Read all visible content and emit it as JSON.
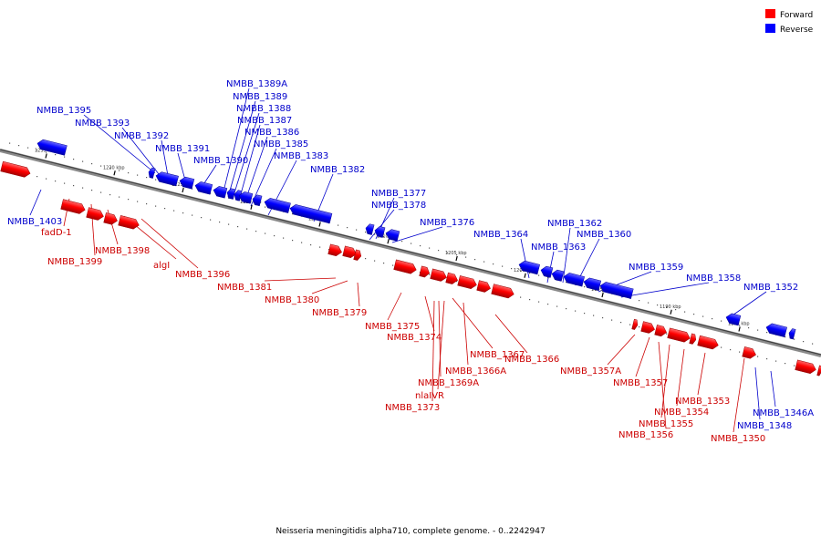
{
  "legend": {
    "forward": {
      "label": "Forward",
      "color": "#ff0000"
    },
    "reverse": {
      "label": "Reverse",
      "color": "#0000ff"
    }
  },
  "caption": "Neisseria meningitidis alpha710, complete genome. - 0..2242947",
  "ticks": [
    {
      "label": "1235 kbp"
    },
    {
      "label": "1230 kbp"
    },
    {
      "label": "1225 kbp"
    },
    {
      "label": "1220 kbp"
    },
    {
      "label": "1215 kbp"
    },
    {
      "label": "1210 kbp"
    },
    {
      "label": "1205 kbp"
    },
    {
      "label": "1200 kbp"
    },
    {
      "label": "1195 kbp"
    },
    {
      "label": "1190 kbp"
    },
    {
      "label": "1185 kbp"
    }
  ],
  "labels": [
    {
      "text": "NMBB_1395",
      "strand": "reverse"
    },
    {
      "text": "NMBB_1393",
      "strand": "reverse"
    },
    {
      "text": "NMBB_1392",
      "strand": "reverse"
    },
    {
      "text": "NMBB_1391",
      "strand": "reverse"
    },
    {
      "text": "NMBB_1390",
      "strand": "reverse"
    },
    {
      "text": "NMBB_1389A",
      "strand": "reverse"
    },
    {
      "text": "NMBB_1389",
      "strand": "reverse"
    },
    {
      "text": "NMBB_1388",
      "strand": "reverse"
    },
    {
      "text": "NMBB_1387",
      "strand": "reverse"
    },
    {
      "text": "NMBB_1386",
      "strand": "reverse"
    },
    {
      "text": "NMBB_1385",
      "strand": "reverse"
    },
    {
      "text": "NMBB_1383",
      "strand": "reverse"
    },
    {
      "text": "NMBB_1382",
      "strand": "reverse"
    },
    {
      "text": "NMBB_1377",
      "strand": "reverse"
    },
    {
      "text": "NMBB_1378",
      "strand": "reverse"
    },
    {
      "text": "NMBB_1376",
      "strand": "reverse"
    },
    {
      "text": "NMBB_1364",
      "strand": "reverse"
    },
    {
      "text": "NMBB_1362",
      "strand": "reverse"
    },
    {
      "text": "NMBB_1363",
      "strand": "reverse"
    },
    {
      "text": "NMBB_1360",
      "strand": "reverse"
    },
    {
      "text": "NMBB_1359",
      "strand": "reverse"
    },
    {
      "text": "NMBB_1358",
      "strand": "reverse"
    },
    {
      "text": "NMBB_1352",
      "strand": "reverse"
    },
    {
      "text": "NMBB_1403",
      "strand": "reverse"
    },
    {
      "text": "NMBB_1346A",
      "strand": "reverse"
    },
    {
      "text": "NMBB_1348",
      "strand": "reverse"
    },
    {
      "text": "fadD-1",
      "strand": "forward"
    },
    {
      "text": "NMBB_1399",
      "strand": "forward"
    },
    {
      "text": "NMBB_1398",
      "strand": "forward"
    },
    {
      "text": "algI",
      "strand": "forward"
    },
    {
      "text": "NMBB_1396",
      "strand": "forward"
    },
    {
      "text": "NMBB_1381",
      "strand": "forward"
    },
    {
      "text": "NMBB_1380",
      "strand": "forward"
    },
    {
      "text": "NMBB_1379",
      "strand": "forward"
    },
    {
      "text": "NMBB_1375",
      "strand": "forward"
    },
    {
      "text": "NMBB_1374",
      "strand": "forward"
    },
    {
      "text": "NMBB_1367",
      "strand": "forward"
    },
    {
      "text": "NMBB_1366A",
      "strand": "forward"
    },
    {
      "text": "NMBB_1366",
      "strand": "forward"
    },
    {
      "text": "NMBB_1369A",
      "strand": "forward"
    },
    {
      "text": "nlaIVR",
      "strand": "forward"
    },
    {
      "text": "NMBB_1373",
      "strand": "forward"
    },
    {
      "text": "NMBB_1357A",
      "strand": "forward"
    },
    {
      "text": "NMBB_1357",
      "strand": "forward"
    },
    {
      "text": "NMBB_1353",
      "strand": "forward"
    },
    {
      "text": "NMBB_1354",
      "strand": "forward"
    },
    {
      "text": "NMBB_1355",
      "strand": "forward"
    },
    {
      "text": "NMBB_1356",
      "strand": "forward"
    },
    {
      "text": "NMBB_1350",
      "strand": "forward"
    }
  ]
}
